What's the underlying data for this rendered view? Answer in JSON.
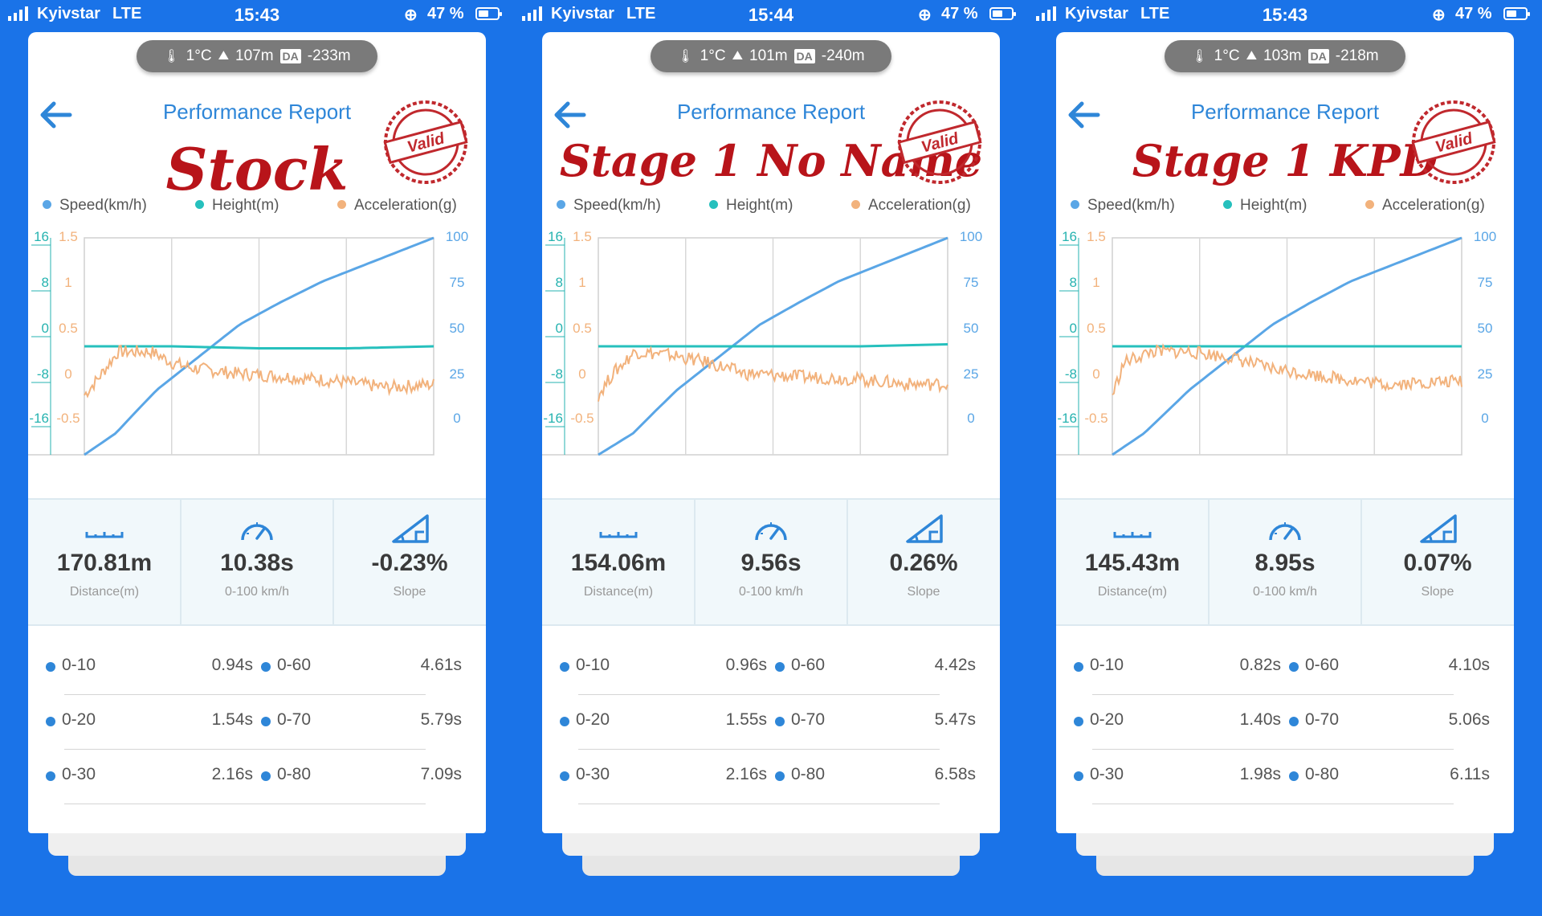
{
  "status_bar": {
    "carrier": "Kyivstar",
    "network": "LTE",
    "battery": "47 %",
    "times": [
      "15:43",
      "15:44",
      "15:43"
    ]
  },
  "app": {
    "title": "Performance Report",
    "stamp_text": "Valid",
    "accent_color": "#2e86d8",
    "stamp_color": "#c0282d",
    "legend": {
      "speed": "Speed(km/h)",
      "height": "Height(m)",
      "accel": "Acceleration(g)"
    },
    "axes": {
      "height_ticks": [
        "16",
        "8",
        "0",
        "-8",
        "-16"
      ],
      "accel_ticks": [
        "1.5",
        "1",
        "0.5",
        "0",
        "-0.5"
      ],
      "speed_ticks": [
        "100",
        "75",
        "50",
        "25",
        "0"
      ]
    },
    "stat_labels": {
      "distance": "Distance(m)",
      "time": "0-100 km/h",
      "slope": "Slope"
    }
  },
  "panels": [
    {
      "stage_label": "Stock",
      "env": {
        "temp": "1°C",
        "altitude": "107m",
        "da_label": "DA",
        "da_value": "-233m"
      },
      "stats": {
        "distance": "170.81m",
        "time": "10.38s",
        "slope": "-0.23%"
      },
      "splits": [
        {
          "k1": "0-10",
          "v1": "0.94s",
          "k2": "0-60",
          "v2": "4.61s"
        },
        {
          "k1": "0-20",
          "v1": "1.54s",
          "k2": "0-70",
          "v2": "5.79s"
        },
        {
          "k1": "0-30",
          "v1": "2.16s",
          "k2": "0-80",
          "v2": "7.09s"
        }
      ],
      "chart_data": {
        "type": "line",
        "xlim": [
          0,
          10.38
        ],
        "series": [
          {
            "name": "Speed(km/h)",
            "axis": "right",
            "x": [
              0,
              0.94,
              1.54,
              2.16,
              4.61,
              5.79,
              7.09,
              10.38
            ],
            "values": [
              0,
              10,
              20,
              30,
              60,
              70,
              80,
              100
            ]
          },
          {
            "name": "Height(m)",
            "axis": "left",
            "x": [
              0,
              2.6,
              5.2,
              7.8,
              10.38
            ],
            "values": [
              0,
              0,
              -0.3,
              -0.3,
              0
            ]
          },
          {
            "name": "Acceleration(g)",
            "axis": "accel",
            "x": [
              0,
              0.4,
              1.0,
              2.0,
              2.6,
              3.2,
              4.5,
              6.0,
              7.5,
              9.0,
              10.38
            ],
            "values": [
              0.05,
              0.2,
              0.45,
              0.45,
              0.35,
              0.3,
              0.25,
              0.22,
              0.18,
              0.12,
              0.15
            ]
          }
        ],
        "ylim_left": [
          -16,
          16
        ],
        "ylim_accel": [
          -0.5,
          1.5
        ],
        "ylim_right": [
          0,
          100
        ]
      }
    },
    {
      "stage_label": "Stage 1 No Name",
      "env": {
        "temp": "1°C",
        "altitude": "101m",
        "da_label": "DA",
        "da_value": "-240m"
      },
      "stats": {
        "distance": "154.06m",
        "time": "9.56s",
        "slope": "0.26%"
      },
      "splits": [
        {
          "k1": "0-10",
          "v1": "0.96s",
          "k2": "0-60",
          "v2": "4.42s"
        },
        {
          "k1": "0-20",
          "v1": "1.55s",
          "k2": "0-70",
          "v2": "5.47s"
        },
        {
          "k1": "0-30",
          "v1": "2.16s",
          "k2": "0-80",
          "v2": "6.58s"
        }
      ],
      "chart_data": {
        "type": "line",
        "xlim": [
          0,
          9.56
        ],
        "series": [
          {
            "name": "Speed(km/h)",
            "axis": "right",
            "x": [
              0,
              0.96,
              1.55,
              2.16,
              4.42,
              5.47,
              6.58,
              9.56
            ],
            "values": [
              0,
              10,
              20,
              30,
              60,
              70,
              80,
              100
            ]
          },
          {
            "name": "Height(m)",
            "axis": "left",
            "x": [
              0,
              2.4,
              4.8,
              7.2,
              9.56
            ],
            "values": [
              0,
              0,
              0,
              0,
              0.3
            ]
          },
          {
            "name": "Acceleration(g)",
            "axis": "accel",
            "x": [
              0,
              0.4,
              1.0,
              2.0,
              3.0,
              4.0,
              5.5,
              7.0,
              8.5,
              9.56
            ],
            "values": [
              0.05,
              0.25,
              0.45,
              0.42,
              0.35,
              0.25,
              0.22,
              0.2,
              0.15,
              0.15
            ]
          }
        ],
        "ylim_left": [
          -16,
          16
        ],
        "ylim_accel": [
          -0.5,
          1.5
        ],
        "ylim_right": [
          0,
          100
        ]
      }
    },
    {
      "stage_label": "Stage 1 KPD",
      "env": {
        "temp": "1°C",
        "altitude": "103m",
        "da_label": "DA",
        "da_value": "-218m"
      },
      "stats": {
        "distance": "145.43m",
        "time": "8.95s",
        "slope": "0.07%"
      },
      "splits": [
        {
          "k1": "0-10",
          "v1": "0.82s",
          "k2": "0-60",
          "v2": "4.10s"
        },
        {
          "k1": "0-20",
          "v1": "1.40s",
          "k2": "0-70",
          "v2": "5.06s"
        },
        {
          "k1": "0-30",
          "v1": "1.98s",
          "k2": "0-80",
          "v2": "6.11s"
        }
      ],
      "chart_data": {
        "type": "line",
        "xlim": [
          0,
          8.95
        ],
        "series": [
          {
            "name": "Speed(km/h)",
            "axis": "right",
            "x": [
              0,
              0.82,
              1.4,
              1.98,
              4.1,
              5.06,
              6.11,
              8.95
            ],
            "values": [
              0,
              10,
              20,
              30,
              60,
              70,
              80,
              100
            ]
          },
          {
            "name": "Height(m)",
            "axis": "left",
            "x": [
              0,
              2.2,
              4.5,
              6.7,
              8.95
            ],
            "values": [
              0,
              0,
              0,
              0,
              0
            ]
          },
          {
            "name": "Acceleration(g)",
            "axis": "accel",
            "x": [
              0,
              0.3,
              1.0,
              2.0,
              3.0,
              4.0,
              5.5,
              7.0,
              8.95
            ],
            "values": [
              0.05,
              0.35,
              0.45,
              0.45,
              0.4,
              0.3,
              0.22,
              0.15,
              0.18
            ]
          }
        ],
        "ylim_left": [
          -16,
          16
        ],
        "ylim_accel": [
          -0.5,
          1.5
        ],
        "ylim_right": [
          0,
          100
        ]
      }
    }
  ]
}
